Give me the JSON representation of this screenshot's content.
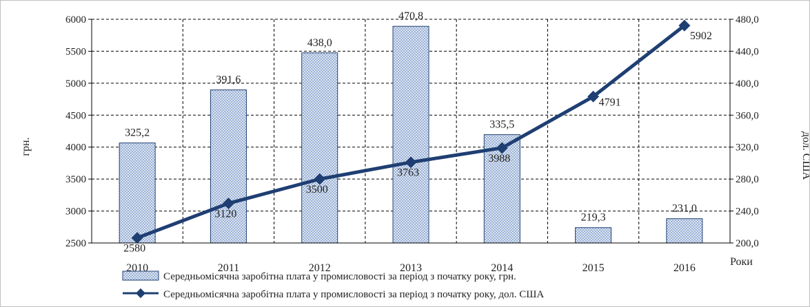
{
  "chart_data": {
    "type": "bar+line",
    "categories": [
      "2010",
      "2011",
      "2012",
      "2013",
      "2014",
      "2015",
      "2016"
    ],
    "xlabel": "Роки",
    "ylabel_left": "грн.",
    "ylabel_right": "дол. США",
    "ylim_left": [
      2500,
      6000
    ],
    "yticks_left": [
      "2500",
      "3000",
      "3500",
      "4000",
      "4500",
      "5000",
      "5500",
      "6000"
    ],
    "ylim_right": [
      200,
      480
    ],
    "yticks_right": [
      "200,0",
      "240,0",
      "280,0",
      "320,0",
      "360,0",
      "400,0",
      "440,0",
      "480,0"
    ],
    "grid": true,
    "legend_position": "bottom",
    "series": [
      {
        "name": "Середньомісячна заробітна плата у промисловості за період з початку року, грн.",
        "kind": "bar",
        "axis": "left",
        "values": [
          4065,
          4895,
          5475,
          5890,
          4195,
          2740,
          2880
        ],
        "labels": [
          "325,2",
          "391,6",
          "438,0",
          "470,8",
          "335,5",
          "219,3",
          "231,0"
        ],
        "color": "#9eb3d6"
      },
      {
        "name": "Середньомісячна заробітна плата у промисловості за період з початку року, дол. США",
        "kind": "line",
        "axis": "left",
        "values": [
          2580,
          3120,
          3500,
          3763,
          3988,
          4791,
          5902
        ],
        "labels": [
          "2580",
          "3120",
          "3500",
          "3763",
          "3988",
          "4791",
          "5902"
        ],
        "color": "#1f3f73"
      }
    ]
  }
}
